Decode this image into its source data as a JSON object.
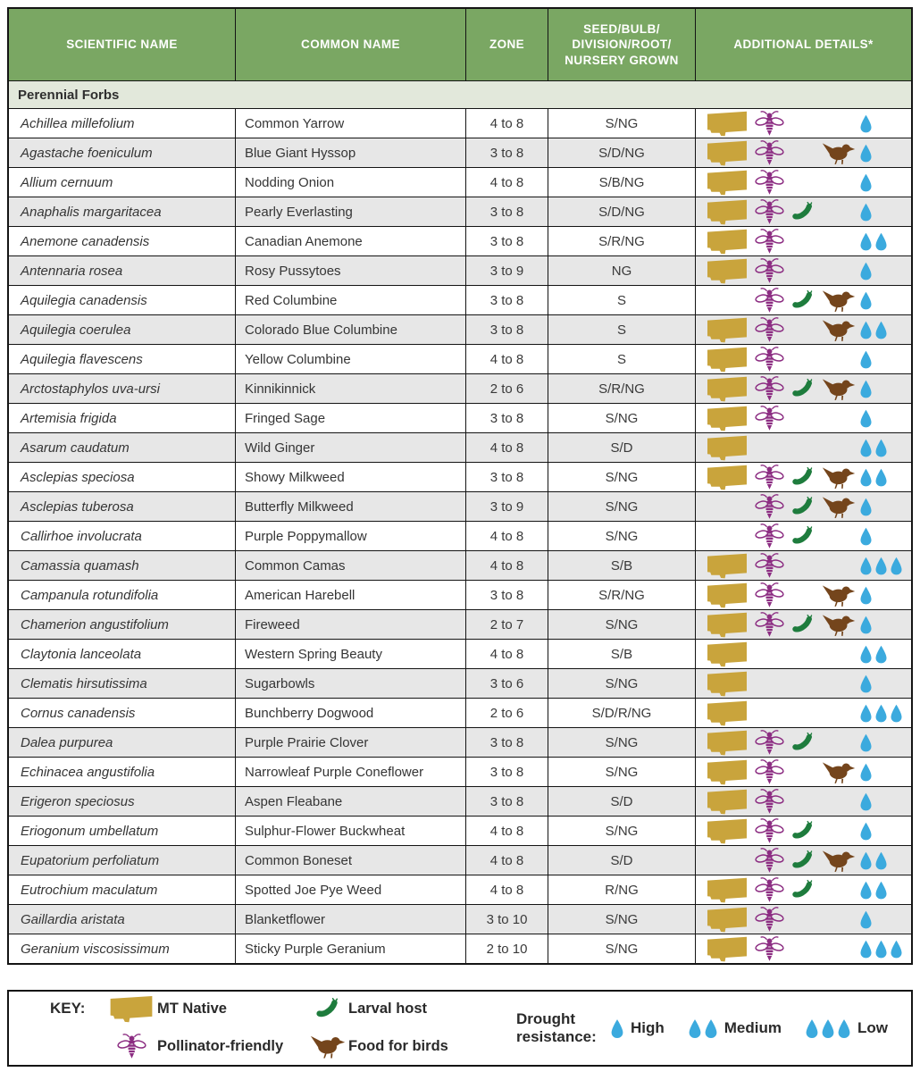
{
  "colors": {
    "header_green": "#7aa763",
    "section_bg": "#e2e8db",
    "alt_row": "#e7e7e7",
    "border": "#141414",
    "gold": "#c9a43c",
    "purple": "#8c2d82",
    "green": "#1e7c3d",
    "brown": "#74451c",
    "blue": "#3baade"
  },
  "table": {
    "columns": [
      {
        "label": "SCIENTIFIC NAME"
      },
      {
        "label": "COMMON NAME"
      },
      {
        "label": "ZONE"
      },
      {
        "label_lines": [
          "SEED/BULB/",
          "DIVISION/ROOT/",
          "NURSERY GROWN"
        ]
      },
      {
        "label": "ADDITIONAL DETAILS*"
      }
    ],
    "section": "Perennial Forbs",
    "rows": [
      {
        "scientific": "Achillea millefolium",
        "common": "Common Yarrow",
        "zone": "4 to 8",
        "seed": "S/NG",
        "icons": [
          "mt",
          "bee"
        ],
        "drought": 1
      },
      {
        "scientific": "Agastache foeniculum",
        "common": "Blue Giant Hyssop",
        "zone": "3 to 8",
        "seed": "S/D/NG",
        "icons": [
          "mt",
          "bee",
          "bird"
        ],
        "drought": 1
      },
      {
        "scientific": "Allium cernuum",
        "common": "Nodding Onion",
        "zone": "4 to 8",
        "seed": "S/B/NG",
        "icons": [
          "mt",
          "bee"
        ],
        "drought": 1
      },
      {
        "scientific": "Anaphalis margaritacea",
        "common": "Pearly Everlasting",
        "zone": "3 to 8",
        "seed": "S/D/NG",
        "icons": [
          "mt",
          "bee",
          "cat"
        ],
        "drought": 1
      },
      {
        "scientific": "Anemone canadensis",
        "common": "Canadian Anemone",
        "zone": "3 to 8",
        "seed": "S/R/NG",
        "icons": [
          "mt",
          "bee"
        ],
        "drought": 2
      },
      {
        "scientific": "Antennaria rosea",
        "common": "Rosy Pussytoes",
        "zone": "3 to 9",
        "seed": "NG",
        "icons": [
          "mt",
          "bee"
        ],
        "drought": 1
      },
      {
        "scientific": "Aquilegia canadensis",
        "common": "Red Columbine",
        "zone": "3 to 8",
        "seed": "S",
        "icons": [
          "bee",
          "cat",
          "bird"
        ],
        "drought": 1
      },
      {
        "scientific": "Aquilegia coerulea",
        "common": "Colorado Blue Columbine",
        "zone": "3 to 8",
        "seed": "S",
        "icons": [
          "mt",
          "bee",
          "bird"
        ],
        "drought": 2
      },
      {
        "scientific": "Aquilegia flavescens",
        "common": "Yellow Columbine",
        "zone": "4 to 8",
        "seed": "S",
        "icons": [
          "mt",
          "bee"
        ],
        "drought": 1
      },
      {
        "scientific": "Arctostaphylos uva-ursi",
        "common": "Kinnikinnick",
        "zone": "2 to 6",
        "seed": "S/R/NG",
        "icons": [
          "mt",
          "bee",
          "cat",
          "bird"
        ],
        "drought": 1
      },
      {
        "scientific": "Artemisia frigida",
        "common": "Fringed Sage",
        "zone": "3 to 8",
        "seed": "S/NG",
        "icons": [
          "mt",
          "bee"
        ],
        "drought": 1
      },
      {
        "scientific": "Asarum caudatum",
        "common": "Wild Ginger",
        "zone": "4 to 8",
        "seed": "S/D",
        "icons": [
          "mt"
        ],
        "drought": 2
      },
      {
        "scientific": "Asclepias speciosa",
        "common": "Showy Milkweed",
        "zone": "3 to 8",
        "seed": "S/NG",
        "icons": [
          "mt",
          "bee",
          "cat",
          "bird"
        ],
        "drought": 2
      },
      {
        "scientific": "Asclepias tuberosa",
        "common": "Butterfly Milkweed",
        "zone": "3 to 9",
        "seed": "S/NG",
        "icons": [
          "bee",
          "cat",
          "bird"
        ],
        "drought": 1
      },
      {
        "scientific": "Callirhoe involucrata",
        "common": "Purple Poppymallow",
        "zone": "4 to 8",
        "seed": "S/NG",
        "icons": [
          "bee",
          "cat"
        ],
        "drought": 1
      },
      {
        "scientific": "Camassia quamash",
        "common": "Common Camas",
        "zone": "4 to 8",
        "seed": "S/B",
        "icons": [
          "mt",
          "bee"
        ],
        "drought": 3
      },
      {
        "scientific": "Campanula rotundifolia",
        "common": "American Harebell",
        "zone": "3 to 8",
        "seed": "S/R/NG",
        "icons": [
          "mt",
          "bee",
          "bird"
        ],
        "drought": 1
      },
      {
        "scientific": "Chamerion angustifolium",
        "common": "Fireweed",
        "zone": "2 to 7",
        "seed": "S/NG",
        "icons": [
          "mt",
          "bee",
          "cat",
          "bird"
        ],
        "drought": 1
      },
      {
        "scientific": "Claytonia lanceolata",
        "common": "Western Spring Beauty",
        "zone": "4 to 8",
        "seed": "S/B",
        "icons": [
          "mt"
        ],
        "drought": 2
      },
      {
        "scientific": "Clematis hirsutissima",
        "common": "Sugarbowls",
        "zone": "3 to 6",
        "seed": "S/NG",
        "icons": [
          "mt"
        ],
        "drought": 1
      },
      {
        "scientific": "Cornus canadensis",
        "common": "Bunchberry Dogwood",
        "zone": "2 to 6",
        "seed": "S/D/R/NG",
        "icons": [
          "mt"
        ],
        "drought": 3
      },
      {
        "scientific": "Dalea purpurea",
        "common": "Purple Prairie Clover",
        "zone": "3 to 8",
        "seed": "S/NG",
        "icons": [
          "mt",
          "bee",
          "cat"
        ],
        "drought": 1
      },
      {
        "scientific": "Echinacea angustifolia",
        "common": "Narrowleaf Purple Coneflower",
        "zone": "3 to 8",
        "seed": "S/NG",
        "icons": [
          "mt",
          "bee",
          "bird"
        ],
        "drought": 1
      },
      {
        "scientific": "Erigeron speciosus",
        "common": "Aspen Fleabane",
        "zone": "3 to 8",
        "seed": "S/D",
        "icons": [
          "mt",
          "bee"
        ],
        "drought": 1
      },
      {
        "scientific": "Eriogonum umbellatum",
        "common": "Sulphur-Flower Buckwheat",
        "zone": "4 to 8",
        "seed": "S/NG",
        "icons": [
          "mt",
          "bee",
          "cat"
        ],
        "drought": 1
      },
      {
        "scientific": "Eupatorium perfoliatum",
        "common": "Common Boneset",
        "zone": "4 to 8",
        "seed": "S/D",
        "icons": [
          "bee",
          "cat",
          "bird"
        ],
        "drought": 2
      },
      {
        "scientific": "Eutrochium maculatum",
        "common": "Spotted Joe Pye Weed",
        "zone": "4 to 8",
        "seed": "R/NG",
        "icons": [
          "mt",
          "bee",
          "cat"
        ],
        "drought": 2
      },
      {
        "scientific": "Gaillardia aristata",
        "common": "Blanketflower",
        "zone": "3 to 10",
        "seed": "S/NG",
        "icons": [
          "mt",
          "bee"
        ],
        "drought": 1
      },
      {
        "scientific": "Geranium viscosissimum",
        "common": "Sticky Purple Geranium",
        "zone": "2 to 10",
        "seed": "S/NG",
        "icons": [
          "mt",
          "bee"
        ],
        "drought": 3
      }
    ]
  },
  "key": {
    "label": "KEY:",
    "items": [
      {
        "icon": "mt",
        "label": "MT Native"
      },
      {
        "icon": "bee",
        "label": "Pollinator-friendly"
      },
      {
        "icon": "cat",
        "label": "Larval host"
      },
      {
        "icon": "bird",
        "label": "Food for birds"
      }
    ],
    "drought": {
      "label": "Drought resistance:",
      "levels": [
        {
          "drops": 1,
          "label": "High"
        },
        {
          "drops": 2,
          "label": "Medium"
        },
        {
          "drops": 3,
          "label": "Low"
        }
      ]
    }
  }
}
